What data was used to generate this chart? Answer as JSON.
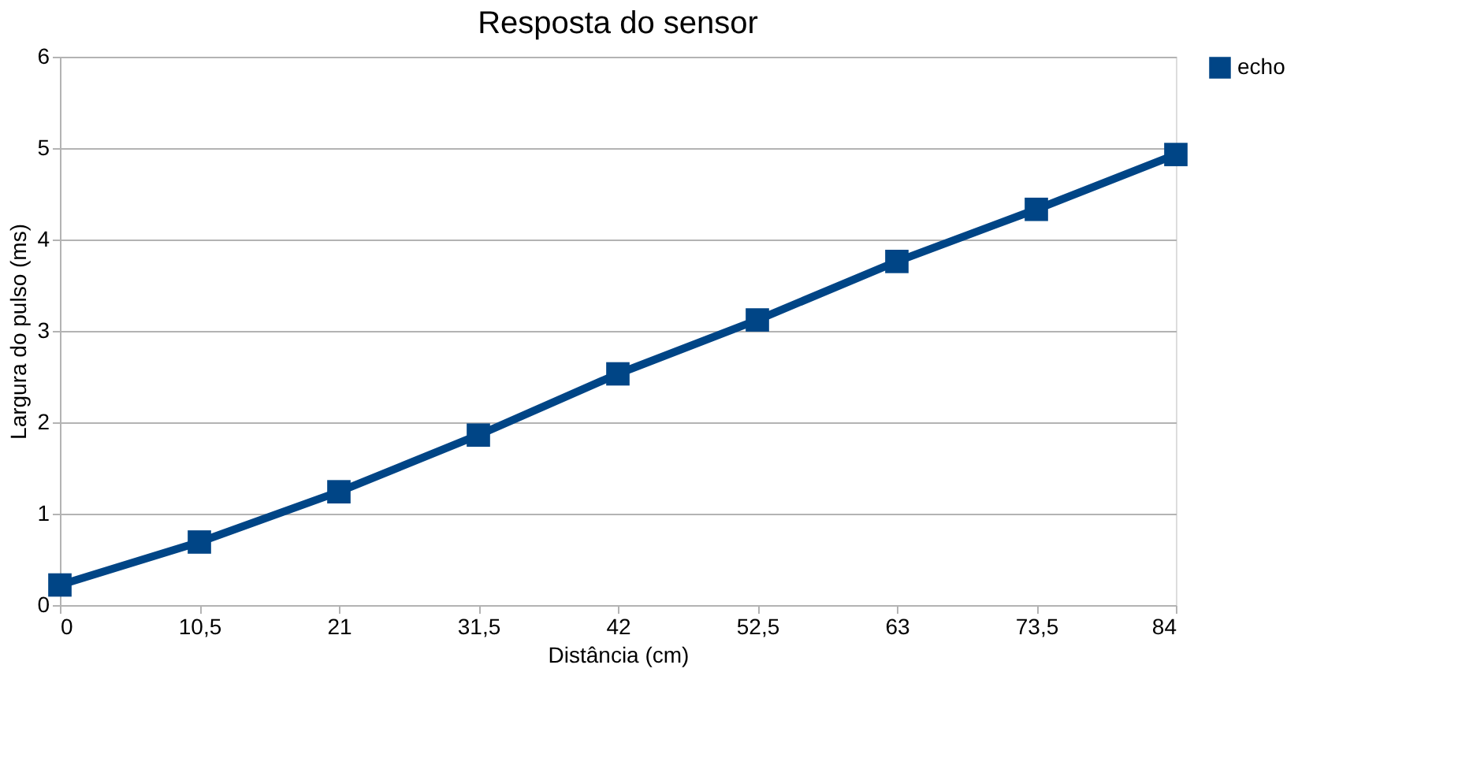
{
  "chart_data": {
    "type": "line",
    "title": "Resposta do sensor",
    "xlabel": "Distância (cm)",
    "ylabel": "Largura do pulso (ms)",
    "x": [
      0,
      10.5,
      21,
      31.5,
      42,
      52.5,
      63,
      73.5,
      84
    ],
    "series": [
      {
        "name": "echo",
        "color": "#004586",
        "values": [
          0.22,
          0.69,
          1.24,
          1.86,
          2.53,
          3.12,
          3.76,
          4.33,
          4.93
        ]
      }
    ],
    "xlim": [
      0,
      84
    ],
    "xticks": [
      0,
      {
        "value": 10.5,
        "label": "10,5"
      },
      21,
      {
        "value": 31.5,
        "label": "31,5"
      },
      42,
      {
        "value": 52.5,
        "label": "52,5"
      },
      63,
      {
        "value": 73.5,
        "label": "73,5"
      },
      84
    ],
    "ylim": [
      0,
      6
    ],
    "yticks": [
      0,
      1,
      2,
      3,
      4,
      5,
      6
    ],
    "grid": "y",
    "legend": "right",
    "marker": "square",
    "line_style": "solid"
  }
}
